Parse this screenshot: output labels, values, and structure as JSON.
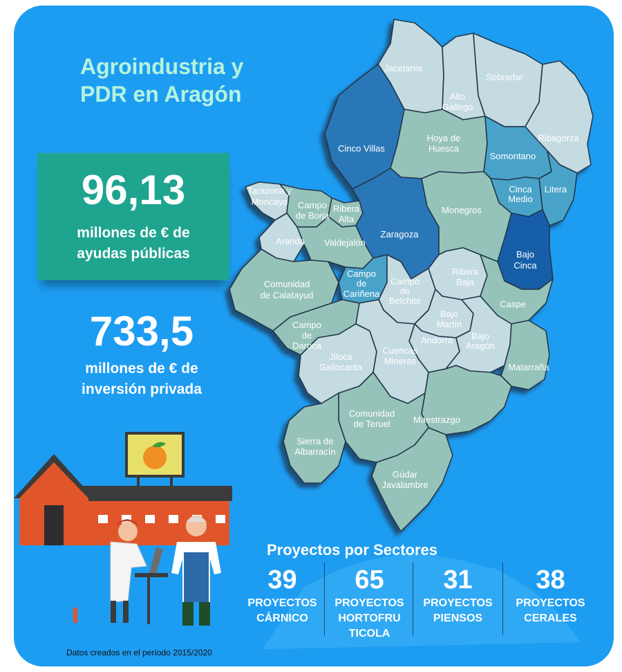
{
  "header": {
    "title_line1": "Agroindustria y",
    "title_line2": "PDR en Aragón"
  },
  "stats": {
    "public_value": "96,13",
    "public_label_line1": "millones de € de",
    "public_label_line2": "ayudas públicas",
    "private_value": "733,5",
    "private_label_line1": "millones de € de",
    "private_label_line2": "inversión privada"
  },
  "sectors": {
    "title": "Proyectos por Sectores",
    "items": [
      {
        "count": "39",
        "label_line1": "PROYECTOS",
        "label_line2": "CÁRNICO",
        "label_line3": ""
      },
      {
        "count": "65",
        "label_line1": "PROYECTOS",
        "label_line2": "HORTOFRU",
        "label_line3": "TICOLA"
      },
      {
        "count": "31",
        "label_line1": "PROYECTOS",
        "label_line2": "PIENSOS",
        "label_line3": ""
      },
      {
        "count": "38",
        "label_line1": "PROYECTOS",
        "label_line2": "CERALES",
        "label_line3": ""
      }
    ]
  },
  "footer": {
    "note": "Datos creados en el período 2015/2020"
  },
  "map": {
    "regions": {
      "jacetania": "Jacetania",
      "alto_gallego_1": "Alto",
      "alto_gallego_2": "Gallego",
      "sobrarbe": "Sobrarbe",
      "ribagorza": "Ribagorza",
      "cinco_villas": "Cinco Villas",
      "hoya_1": "Hoya de",
      "hoya_2": "Huesca",
      "somontano": "Somontano",
      "cinca_medio_1": "Cinca",
      "cinca_medio_2": "Medio",
      "litera": "Litera",
      "tarazona_1": "Tarazona y",
      "tarazona_2": "Moncayo",
      "borja_1": "Campo",
      "borja_2": "de Borja",
      "ribera_alta_1": "Ribera",
      "ribera_alta_2": "Alta",
      "monegros": "Monegros",
      "zaragoza": "Zaragoza",
      "aranda": "Aranda",
      "valdejalon": "Valdejalón",
      "bajo_cinca_1": "Bajo",
      "bajo_cinca_2": "Cinca",
      "calatayud_1": "Comunidad",
      "calatayud_2": "de Calatayud",
      "carinena_1": "Campo",
      "carinena_2": "de",
      "carinena_3": "Cariñena",
      "belchite_1": "Campo",
      "belchite_2": "de",
      "belchite_3": "Belchite",
      "ribera_baja_1": "Ribera",
      "ribera_baja_2": "Baja",
      "caspe": "Caspe",
      "daroca_1": "Campo",
      "daroca_2": "de",
      "daroca_3": "Daroca",
      "bajo_martin_1": "Bajo",
      "bajo_martin_2": "Martín",
      "andorra": "Andorra",
      "bajo_aragon_1": "Bajo",
      "bajo_aragon_2": "Aragón",
      "jiloca_1": "Jiloca",
      "jiloca_2": "Gallocanta",
      "cuencas_1": "Cuencas",
      "cuencas_2": "Mineras",
      "matarrana": "Matarraña",
      "teruel_1": "Comunidad",
      "teruel_2": "de Teruel",
      "maestrazgo": "Maestrazgo",
      "albarracin_1": "Sierra de",
      "albarracin_2": "Albarracín",
      "gudar_1": "Gúdar",
      "gudar_2": "Javalambre"
    }
  },
  "colors": {
    "background": "#1d9df2",
    "title": "#b4f3de",
    "public_box": "#1fa48f",
    "region_light": "#c4dbe1",
    "region_teal": "#96c3b9",
    "region_mid": "#4aa3c8",
    "region_dark": "#2b77b8",
    "region_darkest": "#135fa8"
  }
}
